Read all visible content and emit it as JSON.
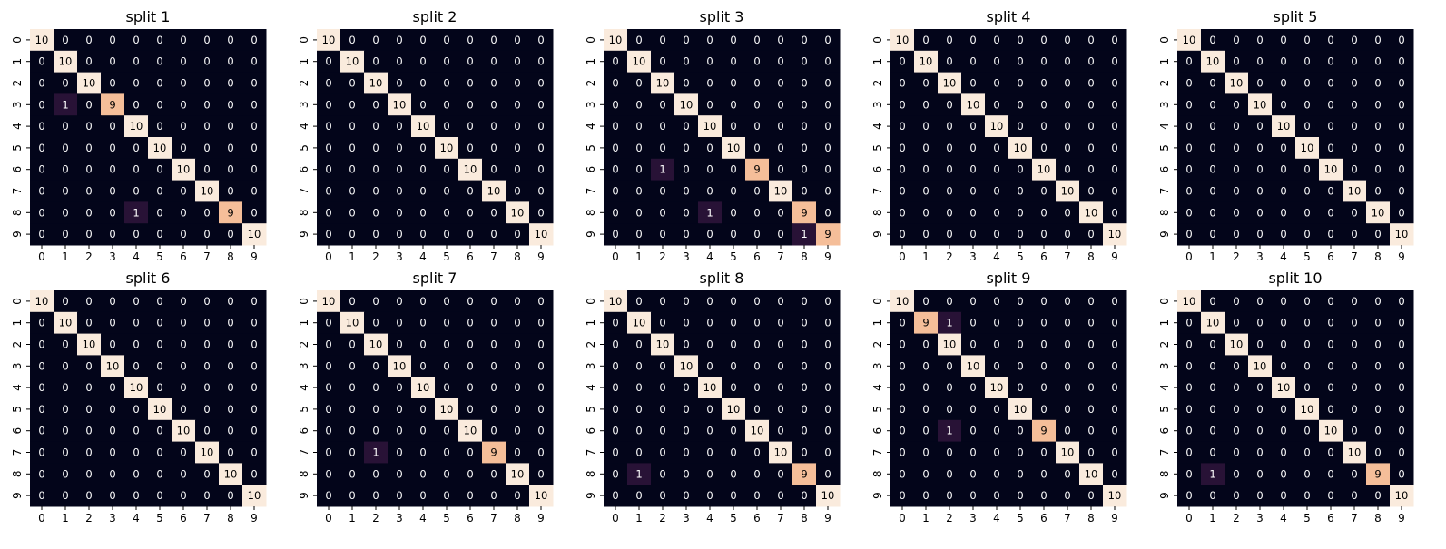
{
  "chart_data": [
    {
      "type": "heatmap",
      "title": "split 1",
      "x": [
        "0",
        "1",
        "2",
        "3",
        "4",
        "5",
        "6",
        "7",
        "8",
        "9"
      ],
      "y": [
        "0",
        "1",
        "2",
        "3",
        "4",
        "5",
        "6",
        "7",
        "8",
        "9"
      ],
      "z": [
        [
          10,
          0,
          0,
          0,
          0,
          0,
          0,
          0,
          0,
          0
        ],
        [
          0,
          10,
          0,
          0,
          0,
          0,
          0,
          0,
          0,
          0
        ],
        [
          0,
          0,
          10,
          0,
          0,
          0,
          0,
          0,
          0,
          0
        ],
        [
          0,
          1,
          0,
          9,
          0,
          0,
          0,
          0,
          0,
          0
        ],
        [
          0,
          0,
          0,
          0,
          10,
          0,
          0,
          0,
          0,
          0
        ],
        [
          0,
          0,
          0,
          0,
          0,
          10,
          0,
          0,
          0,
          0
        ],
        [
          0,
          0,
          0,
          0,
          0,
          0,
          10,
          0,
          0,
          0
        ],
        [
          0,
          0,
          0,
          0,
          0,
          0,
          0,
          10,
          0,
          0
        ],
        [
          0,
          0,
          0,
          0,
          1,
          0,
          0,
          0,
          9,
          0
        ],
        [
          0,
          0,
          0,
          0,
          0,
          0,
          0,
          0,
          0,
          10
        ]
      ],
      "zlim": [
        0,
        10
      ],
      "colorbar": false
    },
    {
      "type": "heatmap",
      "title": "split 2",
      "x": [
        "0",
        "1",
        "2",
        "3",
        "4",
        "5",
        "6",
        "7",
        "8",
        "9"
      ],
      "y": [
        "0",
        "1",
        "2",
        "3",
        "4",
        "5",
        "6",
        "7",
        "8",
        "9"
      ],
      "z": [
        [
          10,
          0,
          0,
          0,
          0,
          0,
          0,
          0,
          0,
          0
        ],
        [
          0,
          10,
          0,
          0,
          0,
          0,
          0,
          0,
          0,
          0
        ],
        [
          0,
          0,
          10,
          0,
          0,
          0,
          0,
          0,
          0,
          0
        ],
        [
          0,
          0,
          0,
          10,
          0,
          0,
          0,
          0,
          0,
          0
        ],
        [
          0,
          0,
          0,
          0,
          10,
          0,
          0,
          0,
          0,
          0
        ],
        [
          0,
          0,
          0,
          0,
          0,
          10,
          0,
          0,
          0,
          0
        ],
        [
          0,
          0,
          0,
          0,
          0,
          0,
          10,
          0,
          0,
          0
        ],
        [
          0,
          0,
          0,
          0,
          0,
          0,
          0,
          10,
          0,
          0
        ],
        [
          0,
          0,
          0,
          0,
          0,
          0,
          0,
          0,
          10,
          0
        ],
        [
          0,
          0,
          0,
          0,
          0,
          0,
          0,
          0,
          0,
          10
        ]
      ],
      "zlim": [
        0,
        10
      ],
      "colorbar": false
    },
    {
      "type": "heatmap",
      "title": "split 3",
      "x": [
        "0",
        "1",
        "2",
        "3",
        "4",
        "5",
        "6",
        "7",
        "8",
        "9"
      ],
      "y": [
        "0",
        "1",
        "2",
        "3",
        "4",
        "5",
        "6",
        "7",
        "8",
        "9"
      ],
      "z": [
        [
          10,
          0,
          0,
          0,
          0,
          0,
          0,
          0,
          0,
          0
        ],
        [
          0,
          10,
          0,
          0,
          0,
          0,
          0,
          0,
          0,
          0
        ],
        [
          0,
          0,
          10,
          0,
          0,
          0,
          0,
          0,
          0,
          0
        ],
        [
          0,
          0,
          0,
          10,
          0,
          0,
          0,
          0,
          0,
          0
        ],
        [
          0,
          0,
          0,
          0,
          10,
          0,
          0,
          0,
          0,
          0
        ],
        [
          0,
          0,
          0,
          0,
          0,
          10,
          0,
          0,
          0,
          0
        ],
        [
          0,
          0,
          1,
          0,
          0,
          0,
          9,
          0,
          0,
          0
        ],
        [
          0,
          0,
          0,
          0,
          0,
          0,
          0,
          10,
          0,
          0
        ],
        [
          0,
          0,
          0,
          0,
          1,
          0,
          0,
          0,
          9,
          0
        ],
        [
          0,
          0,
          0,
          0,
          0,
          0,
          0,
          0,
          1,
          9
        ]
      ],
      "zlim": [
        0,
        10
      ],
      "colorbar": false
    },
    {
      "type": "heatmap",
      "title": "split 4",
      "x": [
        "0",
        "1",
        "2",
        "3",
        "4",
        "5",
        "6",
        "7",
        "8",
        "9"
      ],
      "y": [
        "0",
        "1",
        "2",
        "3",
        "4",
        "5",
        "6",
        "7",
        "8",
        "9"
      ],
      "z": [
        [
          10,
          0,
          0,
          0,
          0,
          0,
          0,
          0,
          0,
          0
        ],
        [
          0,
          10,
          0,
          0,
          0,
          0,
          0,
          0,
          0,
          0
        ],
        [
          0,
          0,
          10,
          0,
          0,
          0,
          0,
          0,
          0,
          0
        ],
        [
          0,
          0,
          0,
          10,
          0,
          0,
          0,
          0,
          0,
          0
        ],
        [
          0,
          0,
          0,
          0,
          10,
          0,
          0,
          0,
          0,
          0
        ],
        [
          0,
          0,
          0,
          0,
          0,
          10,
          0,
          0,
          0,
          0
        ],
        [
          0,
          0,
          0,
          0,
          0,
          0,
          10,
          0,
          0,
          0
        ],
        [
          0,
          0,
          0,
          0,
          0,
          0,
          0,
          10,
          0,
          0
        ],
        [
          0,
          0,
          0,
          0,
          0,
          0,
          0,
          0,
          10,
          0
        ],
        [
          0,
          0,
          0,
          0,
          0,
          0,
          0,
          0,
          0,
          10
        ]
      ],
      "zlim": [
        0,
        10
      ],
      "colorbar": false
    },
    {
      "type": "heatmap",
      "title": "split 5",
      "x": [
        "0",
        "1",
        "2",
        "3",
        "4",
        "5",
        "6",
        "7",
        "8",
        "9"
      ],
      "y": [
        "0",
        "1",
        "2",
        "3",
        "4",
        "5",
        "6",
        "7",
        "8",
        "9"
      ],
      "z": [
        [
          10,
          0,
          0,
          0,
          0,
          0,
          0,
          0,
          0,
          0
        ],
        [
          0,
          10,
          0,
          0,
          0,
          0,
          0,
          0,
          0,
          0
        ],
        [
          0,
          0,
          10,
          0,
          0,
          0,
          0,
          0,
          0,
          0
        ],
        [
          0,
          0,
          0,
          10,
          0,
          0,
          0,
          0,
          0,
          0
        ],
        [
          0,
          0,
          0,
          0,
          10,
          0,
          0,
          0,
          0,
          0
        ],
        [
          0,
          0,
          0,
          0,
          0,
          10,
          0,
          0,
          0,
          0
        ],
        [
          0,
          0,
          0,
          0,
          0,
          0,
          10,
          0,
          0,
          0
        ],
        [
          0,
          0,
          0,
          0,
          0,
          0,
          0,
          10,
          0,
          0
        ],
        [
          0,
          0,
          0,
          0,
          0,
          0,
          0,
          0,
          10,
          0
        ],
        [
          0,
          0,
          0,
          0,
          0,
          0,
          0,
          0,
          0,
          10
        ]
      ],
      "zlim": [
        0,
        10
      ],
      "colorbar": false
    },
    {
      "type": "heatmap",
      "title": "split 6",
      "x": [
        "0",
        "1",
        "2",
        "3",
        "4",
        "5",
        "6",
        "7",
        "8",
        "9"
      ],
      "y": [
        "0",
        "1",
        "2",
        "3",
        "4",
        "5",
        "6",
        "7",
        "8",
        "9"
      ],
      "z": [
        [
          10,
          0,
          0,
          0,
          0,
          0,
          0,
          0,
          0,
          0
        ],
        [
          0,
          10,
          0,
          0,
          0,
          0,
          0,
          0,
          0,
          0
        ],
        [
          0,
          0,
          10,
          0,
          0,
          0,
          0,
          0,
          0,
          0
        ],
        [
          0,
          0,
          0,
          10,
          0,
          0,
          0,
          0,
          0,
          0
        ],
        [
          0,
          0,
          0,
          0,
          10,
          0,
          0,
          0,
          0,
          0
        ],
        [
          0,
          0,
          0,
          0,
          0,
          10,
          0,
          0,
          0,
          0
        ],
        [
          0,
          0,
          0,
          0,
          0,
          0,
          10,
          0,
          0,
          0
        ],
        [
          0,
          0,
          0,
          0,
          0,
          0,
          0,
          10,
          0,
          0
        ],
        [
          0,
          0,
          0,
          0,
          0,
          0,
          0,
          0,
          10,
          0
        ],
        [
          0,
          0,
          0,
          0,
          0,
          0,
          0,
          0,
          0,
          10
        ]
      ],
      "zlim": [
        0,
        10
      ],
      "colorbar": false
    },
    {
      "type": "heatmap",
      "title": "split 7",
      "x": [
        "0",
        "1",
        "2",
        "3",
        "4",
        "5",
        "6",
        "7",
        "8",
        "9"
      ],
      "y": [
        "0",
        "1",
        "2",
        "3",
        "4",
        "5",
        "6",
        "7",
        "8",
        "9"
      ],
      "z": [
        [
          10,
          0,
          0,
          0,
          0,
          0,
          0,
          0,
          0,
          0
        ],
        [
          0,
          10,
          0,
          0,
          0,
          0,
          0,
          0,
          0,
          0
        ],
        [
          0,
          0,
          10,
          0,
          0,
          0,
          0,
          0,
          0,
          0
        ],
        [
          0,
          0,
          0,
          10,
          0,
          0,
          0,
          0,
          0,
          0
        ],
        [
          0,
          0,
          0,
          0,
          10,
          0,
          0,
          0,
          0,
          0
        ],
        [
          0,
          0,
          0,
          0,
          0,
          10,
          0,
          0,
          0,
          0
        ],
        [
          0,
          0,
          0,
          0,
          0,
          0,
          10,
          0,
          0,
          0
        ],
        [
          0,
          0,
          1,
          0,
          0,
          0,
          0,
          9,
          0,
          0
        ],
        [
          0,
          0,
          0,
          0,
          0,
          0,
          0,
          0,
          10,
          0
        ],
        [
          0,
          0,
          0,
          0,
          0,
          0,
          0,
          0,
          0,
          10
        ]
      ],
      "zlim": [
        0,
        10
      ],
      "colorbar": false
    },
    {
      "type": "heatmap",
      "title": "split 8",
      "x": [
        "0",
        "1",
        "2",
        "3",
        "4",
        "5",
        "6",
        "7",
        "8",
        "9"
      ],
      "y": [
        "0",
        "1",
        "2",
        "3",
        "4",
        "5",
        "6",
        "7",
        "8",
        "9"
      ],
      "z": [
        [
          10,
          0,
          0,
          0,
          0,
          0,
          0,
          0,
          0,
          0
        ],
        [
          0,
          10,
          0,
          0,
          0,
          0,
          0,
          0,
          0,
          0
        ],
        [
          0,
          0,
          10,
          0,
          0,
          0,
          0,
          0,
          0,
          0
        ],
        [
          0,
          0,
          0,
          10,
          0,
          0,
          0,
          0,
          0,
          0
        ],
        [
          0,
          0,
          0,
          0,
          10,
          0,
          0,
          0,
          0,
          0
        ],
        [
          0,
          0,
          0,
          0,
          0,
          10,
          0,
          0,
          0,
          0
        ],
        [
          0,
          0,
          0,
          0,
          0,
          0,
          10,
          0,
          0,
          0
        ],
        [
          0,
          0,
          0,
          0,
          0,
          0,
          0,
          10,
          0,
          0
        ],
        [
          0,
          1,
          0,
          0,
          0,
          0,
          0,
          0,
          9,
          0
        ],
        [
          0,
          0,
          0,
          0,
          0,
          0,
          0,
          0,
          0,
          10
        ]
      ],
      "zlim": [
        0,
        10
      ],
      "colorbar": false
    },
    {
      "type": "heatmap",
      "title": "split 9",
      "x": [
        "0",
        "1",
        "2",
        "3",
        "4",
        "5",
        "6",
        "7",
        "8",
        "9"
      ],
      "y": [
        "0",
        "1",
        "2",
        "3",
        "4",
        "5",
        "6",
        "7",
        "8",
        "9"
      ],
      "z": [
        [
          10,
          0,
          0,
          0,
          0,
          0,
          0,
          0,
          0,
          0
        ],
        [
          0,
          9,
          1,
          0,
          0,
          0,
          0,
          0,
          0,
          0
        ],
        [
          0,
          0,
          10,
          0,
          0,
          0,
          0,
          0,
          0,
          0
        ],
        [
          0,
          0,
          0,
          10,
          0,
          0,
          0,
          0,
          0,
          0
        ],
        [
          0,
          0,
          0,
          0,
          10,
          0,
          0,
          0,
          0,
          0
        ],
        [
          0,
          0,
          0,
          0,
          0,
          10,
          0,
          0,
          0,
          0
        ],
        [
          0,
          0,
          1,
          0,
          0,
          0,
          9,
          0,
          0,
          0
        ],
        [
          0,
          0,
          0,
          0,
          0,
          0,
          0,
          10,
          0,
          0
        ],
        [
          0,
          0,
          0,
          0,
          0,
          0,
          0,
          0,
          10,
          0
        ],
        [
          0,
          0,
          0,
          0,
          0,
          0,
          0,
          0,
          0,
          10
        ]
      ],
      "zlim": [
        0,
        10
      ],
      "colorbar": false
    },
    {
      "type": "heatmap",
      "title": "split 10",
      "x": [
        "0",
        "1",
        "2",
        "3",
        "4",
        "5",
        "6",
        "7",
        "8",
        "9"
      ],
      "y": [
        "0",
        "1",
        "2",
        "3",
        "4",
        "5",
        "6",
        "7",
        "8",
        "9"
      ],
      "z": [
        [
          10,
          0,
          0,
          0,
          0,
          0,
          0,
          0,
          0,
          0
        ],
        [
          0,
          10,
          0,
          0,
          0,
          0,
          0,
          0,
          0,
          0
        ],
        [
          0,
          0,
          10,
          0,
          0,
          0,
          0,
          0,
          0,
          0
        ],
        [
          0,
          0,
          0,
          10,
          0,
          0,
          0,
          0,
          0,
          0
        ],
        [
          0,
          0,
          0,
          0,
          10,
          0,
          0,
          0,
          0,
          0
        ],
        [
          0,
          0,
          0,
          0,
          0,
          10,
          0,
          0,
          0,
          0
        ],
        [
          0,
          0,
          0,
          0,
          0,
          0,
          10,
          0,
          0,
          0
        ],
        [
          0,
          0,
          0,
          0,
          0,
          0,
          0,
          10,
          0,
          0
        ],
        [
          0,
          1,
          0,
          0,
          0,
          0,
          0,
          0,
          9,
          0
        ],
        [
          0,
          0,
          0,
          0,
          0,
          0,
          0,
          0,
          0,
          10
        ]
      ],
      "zlim": [
        0,
        10
      ],
      "colorbar": false
    }
  ],
  "colors": {
    "colormap_low": "#03051a",
    "colormap_high": "#faebdd",
    "text_on_dark": "#ffffff",
    "text_on_light": "#000000"
  }
}
